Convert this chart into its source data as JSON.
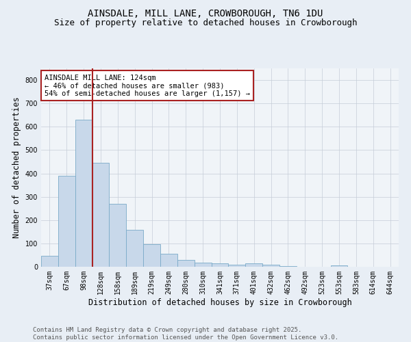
{
  "title": "AINSDALE, MILL LANE, CROWBOROUGH, TN6 1DU",
  "subtitle": "Size of property relative to detached houses in Crowborough",
  "xlabel": "Distribution of detached houses by size in Crowborough",
  "ylabel": "Number of detached properties",
  "categories": [
    "37sqm",
    "67sqm",
    "98sqm",
    "128sqm",
    "158sqm",
    "189sqm",
    "219sqm",
    "249sqm",
    "280sqm",
    "310sqm",
    "341sqm",
    "371sqm",
    "401sqm",
    "432sqm",
    "462sqm",
    "492sqm",
    "523sqm",
    "553sqm",
    "583sqm",
    "614sqm",
    "644sqm"
  ],
  "values": [
    48,
    390,
    630,
    445,
    270,
    157,
    98,
    55,
    30,
    17,
    15,
    8,
    15,
    8,
    3,
    0,
    0,
    5,
    0,
    0,
    0
  ],
  "bar_color": "#c8d8ea",
  "bar_edge_color": "#7aaac8",
  "vline_color": "#aa2222",
  "annotation_text": "AINSDALE MILL LANE: 124sqm\n← 46% of detached houses are smaller (983)\n54% of semi-detached houses are larger (1,157) →",
  "annotation_box_color": "#ffffff",
  "annotation_box_edge": "#aa2222",
  "ylim": [
    0,
    850
  ],
  "yticks": [
    0,
    100,
    200,
    300,
    400,
    500,
    600,
    700,
    800
  ],
  "footer_line1": "Contains HM Land Registry data © Crown copyright and database right 2025.",
  "footer_line2": "Contains public sector information licensed under the Open Government Licence v3.0.",
  "bg_color": "#e8eef5",
  "plot_bg_color": "#f0f4f8",
  "grid_color": "#c5cdd8",
  "title_fontsize": 10,
  "subtitle_fontsize": 9,
  "axis_label_fontsize": 8.5,
  "tick_fontsize": 7,
  "annot_fontsize": 7.5,
  "footer_fontsize": 6.5
}
